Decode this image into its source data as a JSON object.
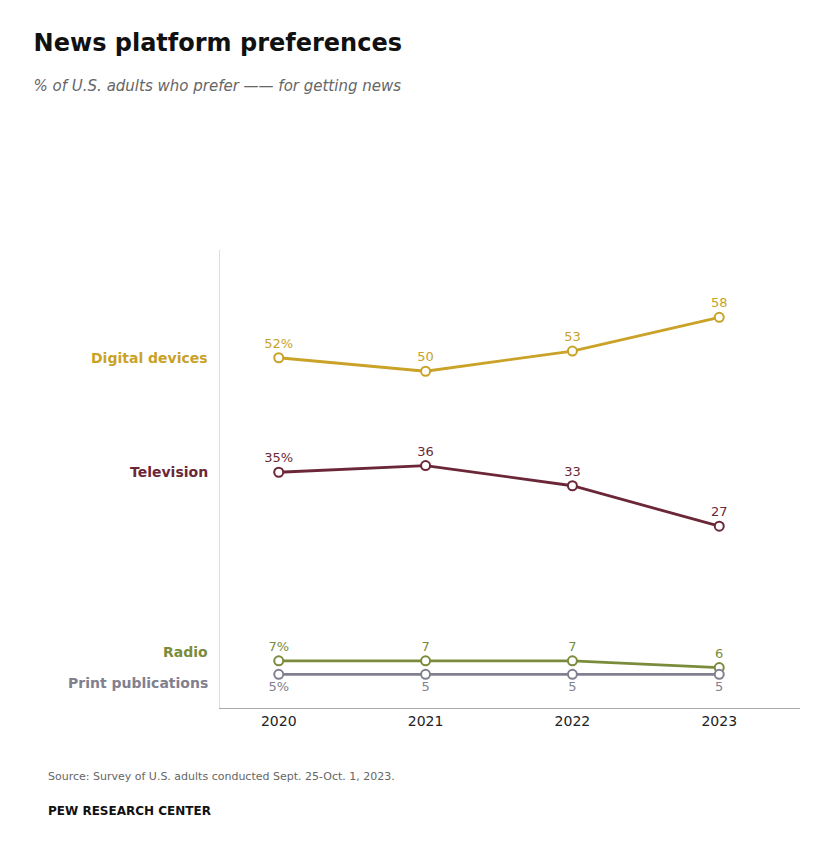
{
  "chart_data": {
    "type": "line",
    "title": "News platform preferences",
    "subtitle": "% of U.S. adults who prefer —— for getting news",
    "x": [
      2020,
      2021,
      2022,
      2023
    ],
    "series": [
      {
        "name": "Digital devices",
        "color": "#C9A227",
        "values": [
          52,
          50,
          53,
          58
        ],
        "value_labels": [
          "52%",
          "50",
          "53",
          "58"
        ]
      },
      {
        "name": "Television",
        "color": "#6B2737",
        "values": [
          35,
          36,
          33,
          27
        ],
        "value_labels": [
          "35%",
          "36",
          "33",
          "27"
        ]
      },
      {
        "name": "Radio",
        "color": "#7A8C3C",
        "values": [
          7,
          7,
          7,
          6
        ],
        "value_labels": [
          "7%",
          "7",
          "7",
          "6"
        ]
      },
      {
        "name": "Print publications",
        "color": "#808090",
        "values": [
          5,
          5,
          5,
          5
        ],
        "value_labels": [
          "5%",
          "5",
          "5",
          "5"
        ]
      }
    ],
    "xlim": [
      2019.6,
      2023.55
    ],
    "xticks": [
      2020,
      2021,
      2022,
      2023
    ],
    "ylim": [
      0,
      68
    ],
    "tick_labels": "x",
    "grid": false,
    "data_labels": true,
    "marker": "circle",
    "annotations": [
      "Source: Survey of U.S. adults conducted Sept. 25-Oct. 1, 2023.",
      "PEW RESEARCH CENTER"
    ]
  }
}
